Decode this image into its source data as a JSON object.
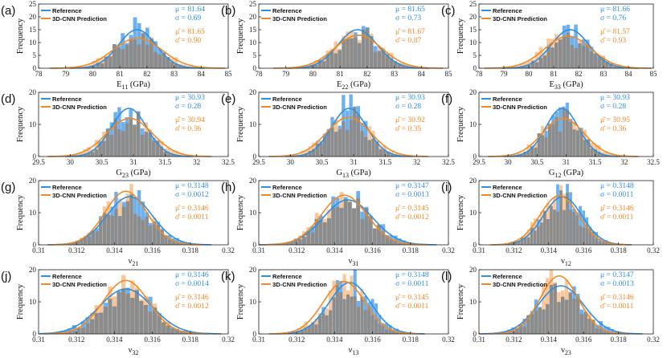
{
  "colors": {
    "reference": "#2f8fe0",
    "prediction": "#f08a24",
    "overlap": "#8c8c8c",
    "ref_bar": "#6cb0ee",
    "pred_bar": "#f8c79a"
  },
  "legend": {
    "reference": "Reference",
    "prediction": "3D-CNN Prediction"
  },
  "chart_data": [
    {
      "panel": "(a)",
      "type": "bar",
      "xlabel": "E",
      "xsub": "11",
      "xunit": "(GPa)",
      "ylabel": "Frequency",
      "xlim": [
        78,
        85
      ],
      "ylim": [
        0,
        25
      ],
      "xticks": [
        "78",
        "79",
        "80",
        "81",
        "82",
        "83",
        "84",
        "85"
      ],
      "yticks": [
        "0",
        "5",
        "10",
        "15",
        "20",
        "25"
      ],
      "ref": {
        "mu": 81.64,
        "sigma": 0.69,
        "mu_text": "μ = 81.64",
        "sigma_text": "σ = 0.69"
      },
      "pred": {
        "mu": 81.65,
        "sigma": 0.9,
        "mu_text": "μ̂ = 81.65",
        "sigma_text": "σ̂ = 0.90"
      },
      "peak": 15
    },
    {
      "panel": "(b)",
      "type": "bar",
      "xlabel": "E",
      "xsub": "22",
      "xunit": "(GPa)",
      "ylabel": "Frequency",
      "xlim": [
        78,
        85
      ],
      "ylim": [
        0,
        25
      ],
      "xticks": [
        "78",
        "79",
        "80",
        "81",
        "82",
        "83",
        "84",
        "85"
      ],
      "yticks": [
        "0",
        "5",
        "10",
        "15",
        "20",
        "25"
      ],
      "ref": {
        "mu": 81.65,
        "sigma": 0.73,
        "mu_text": "μ = 81.65",
        "sigma_text": "σ = 0.73"
      },
      "pred": {
        "mu": 81.67,
        "sigma": 0.87,
        "mu_text": "μ̂ = 81.67",
        "sigma_text": "σ̂ = 0.87"
      },
      "peak": 15
    },
    {
      "panel": "(c)",
      "type": "bar",
      "xlabel": "E",
      "xsub": "33",
      "xunit": "(GPa)",
      "ylabel": "Frequency",
      "xlim": [
        78,
        85
      ],
      "ylim": [
        0,
        25
      ],
      "xticks": [
        "78",
        "79",
        "80",
        "81",
        "82",
        "83",
        "84",
        "85"
      ],
      "yticks": [
        "0",
        "5",
        "10",
        "15",
        "20",
        "25"
      ],
      "ref": {
        "mu": 81.66,
        "sigma": 0.76,
        "mu_text": "μ = 81.66",
        "sigma_text": "σ = 0.76"
      },
      "pred": {
        "mu": 81.57,
        "sigma": 0.93,
        "mu_text": "μ̂ = 81.57",
        "sigma_text": "σ̂ = 0.93"
      },
      "peak": 15
    },
    {
      "panel": "(d)",
      "type": "bar",
      "xlabel": "G",
      "xsub": "23",
      "xunit": "(GPa)",
      "ylabel": "Frequency",
      "xlim": [
        29.5,
        32.5
      ],
      "ylim": [
        0,
        20
      ],
      "xticks": [
        "29.5",
        "30",
        "30.5",
        "31",
        "31.5",
        "32",
        "32.5"
      ],
      "yticks": [
        "0",
        "10",
        "20"
      ],
      "ref": {
        "mu": 30.93,
        "sigma": 0.28,
        "mu_text": "μ = 30.93",
        "sigma_text": "σ = 0.28"
      },
      "pred": {
        "mu": 30.94,
        "sigma": 0.36,
        "mu_text": "μ̂ = 30.94",
        "sigma_text": "σ̂ = 0.36"
      },
      "peak": 15
    },
    {
      "panel": "(e)",
      "type": "bar",
      "xlabel": "G",
      "xsub": "13",
      "xunit": "(GPa)",
      "ylabel": "Frequency",
      "xlim": [
        29.5,
        32.5
      ],
      "ylim": [
        0,
        20
      ],
      "xticks": [
        "29.5",
        "30",
        "30.5",
        "31",
        "31.5",
        "32",
        "32.5"
      ],
      "yticks": [
        "0",
        "10",
        "20"
      ],
      "ref": {
        "mu": 30.93,
        "sigma": 0.28,
        "mu_text": "μ = 30.93",
        "sigma_text": "σ = 0.28"
      },
      "pred": {
        "mu": 30.92,
        "sigma": 0.35,
        "mu_text": "μ̂ = 30.92",
        "sigma_text": "σ̂ = 0.35"
      },
      "peak": 15
    },
    {
      "panel": "(f)",
      "type": "bar",
      "xlabel": "G",
      "xsub": "12",
      "xunit": "(GPa)",
      "ylabel": "Frequency",
      "xlim": [
        29.5,
        32.5
      ],
      "ylim": [
        0,
        20
      ],
      "xticks": [
        "29.5",
        "30",
        "30.5",
        "31",
        "31.5",
        "32",
        "32.5"
      ],
      "yticks": [
        "0",
        "10",
        "20"
      ],
      "ref": {
        "mu": 30.93,
        "sigma": 0.28,
        "mu_text": "μ = 30.93",
        "sigma_text": "σ = 0.28"
      },
      "pred": {
        "mu": 30.95,
        "sigma": 0.36,
        "mu_text": "μ̂ = 30.95",
        "sigma_text": "σ̂ = 0.36"
      },
      "peak": 15
    },
    {
      "panel": "(g)",
      "type": "bar",
      "xlabel": "ν",
      "xsub": "21",
      "xunit": "",
      "ylabel": "Frequency",
      "xlim": [
        0.31,
        0.32
      ],
      "ylim": [
        0,
        20
      ],
      "xticks": [
        "0.31",
        "0.312",
        "0.314",
        "0.316",
        "0.318",
        "0.32"
      ],
      "yticks": [
        "0",
        "10",
        "20"
      ],
      "ref": {
        "mu": 0.3148,
        "sigma": 0.0012,
        "mu_text": "μ = 0.3148",
        "sigma_text": "σ = 0.0012"
      },
      "pred": {
        "mu": 0.3146,
        "sigma": 0.0011,
        "mu_text": "μ̂ = 0.3146",
        "sigma_text": "σ̂ = 0.0011"
      },
      "peak": 15
    },
    {
      "panel": "(h)",
      "type": "bar",
      "xlabel": "ν",
      "xsub": "31",
      "xunit": "",
      "ylabel": "Frequency",
      "xlim": [
        0.31,
        0.32
      ],
      "ylim": [
        0,
        20
      ],
      "xticks": [
        "0.31",
        "0.312",
        "0.314",
        "0.316",
        "0.318",
        "0.32"
      ],
      "yticks": [
        "0",
        "10",
        "20"
      ],
      "ref": {
        "mu": 0.3147,
        "sigma": 0.0013,
        "mu_text": "μ = 0.3147",
        "sigma_text": "σ = 0.0013"
      },
      "pred": {
        "mu": 0.3145,
        "sigma": 0.0012,
        "mu_text": "μ̂ = 0.3145",
        "sigma_text": "σ̂ = 0.0012"
      },
      "peak": 14
    },
    {
      "panel": "(i)",
      "type": "bar",
      "xlabel": "ν",
      "xsub": "12",
      "xunit": "",
      "ylabel": "Frequency",
      "xlim": [
        0.31,
        0.32
      ],
      "ylim": [
        0,
        20
      ],
      "xticks": [
        "0.31",
        "0.312",
        "0.314",
        "0.316",
        "0.318",
        "0.32"
      ],
      "yticks": [
        "0",
        "10",
        "20"
      ],
      "ref": {
        "mu": 0.3148,
        "sigma": 0.0011,
        "mu_text": "μ = 0.3148",
        "sigma_text": "σ = 0.0011"
      },
      "pred": {
        "mu": 0.3146,
        "sigma": 0.0011,
        "mu_text": "μ̂ = 0.3146",
        "sigma_text": "σ̂ = 0.0011"
      },
      "peak": 15
    },
    {
      "panel": "(j)",
      "type": "bar",
      "xlabel": "ν",
      "xsub": "32",
      "xunit": "",
      "ylabel": "Frequency",
      "xlim": [
        0.31,
        0.32
      ],
      "ylim": [
        0,
        20
      ],
      "xticks": [
        "0.31",
        "0.312",
        "0.314",
        "0.316",
        "0.318",
        "0.32"
      ],
      "yticks": [
        "0",
        "10",
        "20"
      ],
      "ref": {
        "mu": 0.3146,
        "sigma": 0.0014,
        "mu_text": "μ = 0.3146",
        "sigma_text": "σ = 0.0014"
      },
      "pred": {
        "mu": 0.3146,
        "sigma": 0.0012,
        "mu_text": "μ̂ = 0.3146",
        "sigma_text": "σ̂ = 0.0012"
      },
      "peak": 14
    },
    {
      "panel": "(k)",
      "type": "bar",
      "xlabel": "ν",
      "xsub": "13",
      "xunit": "",
      "ylabel": "Frequency",
      "xlim": [
        0.31,
        0.32
      ],
      "ylim": [
        0,
        20
      ],
      "xticks": [
        "0.31",
        "0.312",
        "0.314",
        "0.316",
        "0.318",
        "0.32"
      ],
      "yticks": [
        "0",
        "10",
        "20"
      ],
      "ref": {
        "mu": 0.3148,
        "sigma": 0.0011,
        "mu_text": "μ = 0.3148",
        "sigma_text": "σ = 0.0011"
      },
      "pred": {
        "mu": 0.3145,
        "sigma": 0.0011,
        "mu_text": "μ̂ = 0.3145",
        "sigma_text": "σ̂ = 0.0011"
      },
      "peak": 16
    },
    {
      "panel": "(l)",
      "type": "bar",
      "xlabel": "ν",
      "xsub": "23",
      "xunit": "",
      "ylabel": "Frequency",
      "xlim": [
        0.31,
        0.32
      ],
      "ylim": [
        0,
        20
      ],
      "xticks": [
        "0.31",
        "0.312",
        "0.314",
        "0.316",
        "0.318",
        "0.32"
      ],
      "yticks": [
        "0",
        "10",
        "20"
      ],
      "ref": {
        "mu": 0.3147,
        "sigma": 0.0013,
        "mu_text": "μ = 0.3147",
        "sigma_text": "σ = 0.0013"
      },
      "pred": {
        "mu": 0.3146,
        "sigma": 0.0011,
        "mu_text": "μ̂ = 0.3146",
        "sigma_text": "σ̂ = 0.0011"
      },
      "peak": 15
    }
  ]
}
